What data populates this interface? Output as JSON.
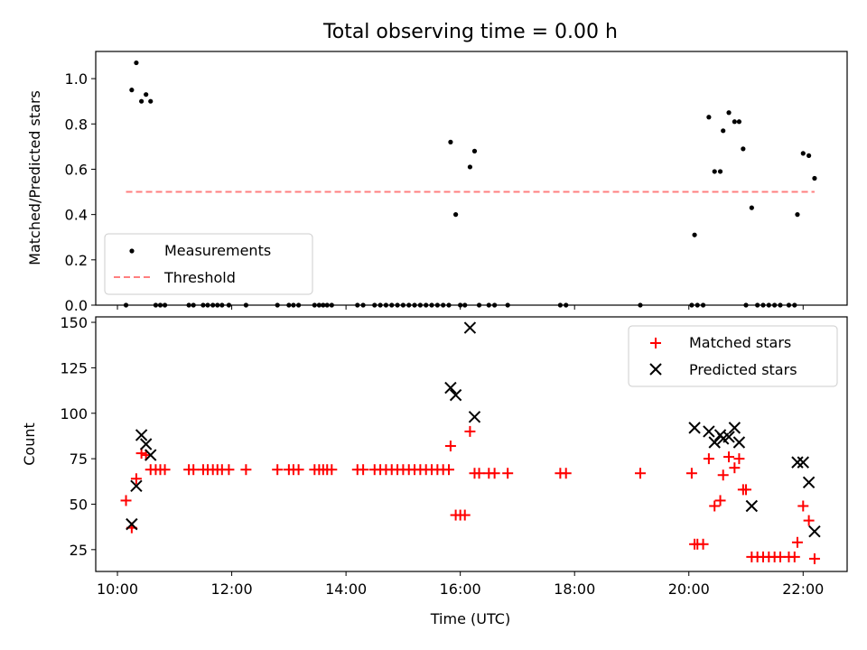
{
  "title": "Total observing time = 0.00 h",
  "chart_data": [
    {
      "type": "scatter",
      "ylabel": "Matched/Predicted stars",
      "xlim": [
        9.62,
        22.77
      ],
      "ylim": [
        0,
        1.12
      ],
      "yticks": [
        0.0,
        0.2,
        0.4,
        0.6,
        0.8,
        1.0
      ],
      "yticklabels": [
        "0.0",
        "0.2",
        "0.4",
        "0.6",
        "0.8",
        "1.0"
      ],
      "legend_position": "lower-left",
      "series": [
        {
          "name": "Measurements",
          "color": "#000000",
          "marker": "dot",
          "points": [
            [
              10.15,
              0.0
            ],
            [
              10.25,
              0.95
            ],
            [
              10.33,
              1.07
            ],
            [
              10.42,
              0.9
            ],
            [
              10.5,
              0.93
            ],
            [
              10.58,
              0.9
            ],
            [
              10.67,
              0.0
            ],
            [
              10.75,
              0.0
            ],
            [
              10.83,
              0.0
            ],
            [
              11.25,
              0.0
            ],
            [
              11.33,
              0.0
            ],
            [
              11.5,
              0.0
            ],
            [
              11.58,
              0.0
            ],
            [
              11.67,
              0.0
            ],
            [
              11.75,
              0.0
            ],
            [
              11.83,
              0.0
            ],
            [
              11.95,
              0.0
            ],
            [
              12.25,
              0.0
            ],
            [
              12.8,
              0.0
            ],
            [
              13.0,
              0.0
            ],
            [
              13.08,
              0.0
            ],
            [
              13.17,
              0.0
            ],
            [
              13.45,
              0.0
            ],
            [
              13.53,
              0.0
            ],
            [
              13.6,
              0.0
            ],
            [
              13.67,
              0.0
            ],
            [
              13.75,
              0.0
            ],
            [
              14.2,
              0.0
            ],
            [
              14.3,
              0.0
            ],
            [
              14.5,
              0.0
            ],
            [
              14.6,
              0.0
            ],
            [
              14.7,
              0.0
            ],
            [
              14.8,
              0.0
            ],
            [
              14.9,
              0.0
            ],
            [
              15.0,
              0.0
            ],
            [
              15.1,
              0.0
            ],
            [
              15.2,
              0.0
            ],
            [
              15.3,
              0.0
            ],
            [
              15.4,
              0.0
            ],
            [
              15.5,
              0.0
            ],
            [
              15.6,
              0.0
            ],
            [
              15.7,
              0.0
            ],
            [
              15.8,
              0.0
            ],
            [
              15.83,
              0.72
            ],
            [
              15.92,
              0.4
            ],
            [
              16.0,
              0.0
            ],
            [
              16.08,
              0.0
            ],
            [
              16.17,
              0.61
            ],
            [
              16.25,
              0.68
            ],
            [
              16.33,
              0.0
            ],
            [
              16.5,
              0.0
            ],
            [
              16.6,
              0.0
            ],
            [
              16.83,
              0.0
            ],
            [
              17.75,
              0.0
            ],
            [
              17.85,
              0.0
            ],
            [
              19.15,
              0.0
            ],
            [
              20.05,
              0.0
            ],
            [
              20.1,
              0.31
            ],
            [
              20.15,
              0.0
            ],
            [
              20.25,
              0.0
            ],
            [
              20.35,
              0.83
            ],
            [
              20.45,
              0.59
            ],
            [
              20.55,
              0.59
            ],
            [
              20.6,
              0.77
            ],
            [
              20.7,
              0.85
            ],
            [
              20.8,
              0.81
            ],
            [
              20.88,
              0.81
            ],
            [
              20.95,
              0.69
            ],
            [
              21.0,
              0.0
            ],
            [
              21.1,
              0.43
            ],
            [
              21.2,
              0.0
            ],
            [
              21.3,
              0.0
            ],
            [
              21.4,
              0.0
            ],
            [
              21.5,
              0.0
            ],
            [
              21.6,
              0.0
            ],
            [
              21.75,
              0.0
            ],
            [
              21.85,
              0.0
            ],
            [
              21.9,
              0.4
            ],
            [
              22.0,
              0.67
            ],
            [
              22.1,
              0.66
            ],
            [
              22.2,
              0.56
            ]
          ]
        },
        {
          "name": "Threshold",
          "color": "#ff7f7f",
          "style": "dashed",
          "points": [
            [
              10.15,
              0.5
            ],
            [
              22.2,
              0.5
            ]
          ]
        }
      ]
    },
    {
      "type": "scatter",
      "xlabel": "Time (UTC)",
      "ylabel": "Count",
      "xlim": [
        9.62,
        22.77
      ],
      "ylim": [
        13,
        153
      ],
      "xticks": [
        10,
        12,
        14,
        16,
        18,
        20,
        22
      ],
      "xticklabels": [
        "10:00",
        "12:00",
        "14:00",
        "16:00",
        "18:00",
        "20:00",
        "22:00"
      ],
      "yticks": [
        25,
        50,
        75,
        100,
        125,
        150
      ],
      "yticklabels": [
        "25",
        "50",
        "75",
        "100",
        "125",
        "150"
      ],
      "legend_position": "upper-right",
      "series": [
        {
          "name": "Matched stars",
          "color": "#ff0000",
          "marker": "plus",
          "points": [
            [
              10.15,
              52
            ],
            [
              10.25,
              37
            ],
            [
              10.33,
              64
            ],
            [
              10.42,
              78
            ],
            [
              10.5,
              77
            ],
            [
              10.58,
              69
            ],
            [
              10.67,
              69
            ],
            [
              10.75,
              69
            ],
            [
              10.83,
              69
            ],
            [
              11.25,
              69
            ],
            [
              11.33,
              69
            ],
            [
              11.5,
              69
            ],
            [
              11.58,
              69
            ],
            [
              11.67,
              69
            ],
            [
              11.75,
              69
            ],
            [
              11.83,
              69
            ],
            [
              11.95,
              69
            ],
            [
              12.25,
              69
            ],
            [
              12.8,
              69
            ],
            [
              13.0,
              69
            ],
            [
              13.08,
              69
            ],
            [
              13.17,
              69
            ],
            [
              13.45,
              69
            ],
            [
              13.53,
              69
            ],
            [
              13.6,
              69
            ],
            [
              13.67,
              69
            ],
            [
              13.75,
              69
            ],
            [
              14.2,
              69
            ],
            [
              14.3,
              69
            ],
            [
              14.5,
              69
            ],
            [
              14.6,
              69
            ],
            [
              14.7,
              69
            ],
            [
              14.8,
              69
            ],
            [
              14.9,
              69
            ],
            [
              15.0,
              69
            ],
            [
              15.1,
              69
            ],
            [
              15.2,
              69
            ],
            [
              15.3,
              69
            ],
            [
              15.4,
              69
            ],
            [
              15.5,
              69
            ],
            [
              15.6,
              69
            ],
            [
              15.7,
              69
            ],
            [
              15.8,
              69
            ],
            [
              15.83,
              82
            ],
            [
              15.92,
              44
            ],
            [
              16.0,
              44
            ],
            [
              16.08,
              44
            ],
            [
              16.17,
              90
            ],
            [
              16.25,
              67
            ],
            [
              16.33,
              67
            ],
            [
              16.5,
              67
            ],
            [
              16.6,
              67
            ],
            [
              16.83,
              67
            ],
            [
              17.75,
              67
            ],
            [
              17.85,
              67
            ],
            [
              19.15,
              67
            ],
            [
              20.05,
              67
            ],
            [
              20.1,
              28
            ],
            [
              20.15,
              28
            ],
            [
              20.25,
              28
            ],
            [
              20.35,
              75
            ],
            [
              20.45,
              49
            ],
            [
              20.55,
              52
            ],
            [
              20.6,
              66
            ],
            [
              20.7,
              76
            ],
            [
              20.8,
              70
            ],
            [
              20.88,
              75
            ],
            [
              20.95,
              58
            ],
            [
              21.0,
              58
            ],
            [
              21.1,
              21
            ],
            [
              21.2,
              21
            ],
            [
              21.3,
              21
            ],
            [
              21.4,
              21
            ],
            [
              21.5,
              21
            ],
            [
              21.6,
              21
            ],
            [
              21.75,
              21
            ],
            [
              21.85,
              21
            ],
            [
              21.9,
              29
            ],
            [
              22.0,
              49
            ],
            [
              22.1,
              41
            ],
            [
              22.2,
              20
            ]
          ]
        },
        {
          "name": "Predicted stars",
          "color": "#000000",
          "marker": "x",
          "points": [
            [
              10.25,
              39
            ],
            [
              10.33,
              60
            ],
            [
              10.42,
              88
            ],
            [
              10.5,
              83
            ],
            [
              10.58,
              77
            ],
            [
              15.83,
              114
            ],
            [
              15.92,
              110
            ],
            [
              16.17,
              147
            ],
            [
              16.25,
              98
            ],
            [
              20.1,
              92
            ],
            [
              20.35,
              90
            ],
            [
              20.45,
              84
            ],
            [
              20.55,
              88
            ],
            [
              20.6,
              86
            ],
            [
              20.7,
              87
            ],
            [
              20.8,
              92
            ],
            [
              20.88,
              84
            ],
            [
              21.1,
              49
            ],
            [
              21.9,
              73
            ],
            [
              22.0,
              73
            ],
            [
              22.1,
              62
            ],
            [
              22.2,
              35
            ]
          ]
        }
      ]
    }
  ]
}
